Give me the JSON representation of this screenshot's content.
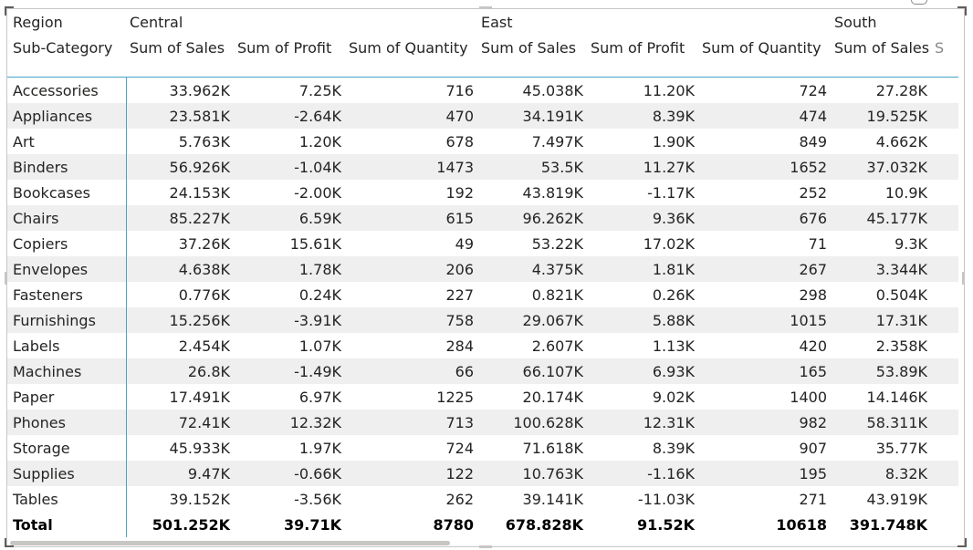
{
  "matrix": {
    "row_header": "Region",
    "col_header_label": "Sub-Category",
    "regions": [
      "Central",
      "East",
      "South"
    ],
    "measures": [
      "Sum of Sales",
      "Sum of Profit",
      "Sum of Quantity"
    ],
    "truncated_measure_glyph": "S",
    "rows": [
      {
        "sub": "Accessories",
        "c_sales": "33.962K",
        "c_profit": "7.25K",
        "c_qty": "716",
        "e_sales": "45.038K",
        "e_profit": "11.20K",
        "e_qty": "724",
        "s_sales": "27.28K"
      },
      {
        "sub": "Appliances",
        "c_sales": "23.581K",
        "c_profit": "-2.64K",
        "c_qty": "470",
        "e_sales": "34.191K",
        "e_profit": "8.39K",
        "e_qty": "474",
        "s_sales": "19.525K"
      },
      {
        "sub": "Art",
        "c_sales": "5.763K",
        "c_profit": "1.20K",
        "c_qty": "678",
        "e_sales": "7.497K",
        "e_profit": "1.90K",
        "e_qty": "849",
        "s_sales": "4.662K"
      },
      {
        "sub": "Binders",
        "c_sales": "56.926K",
        "c_profit": "-1.04K",
        "c_qty": "1473",
        "e_sales": "53.5K",
        "e_profit": "11.27K",
        "e_qty": "1652",
        "s_sales": "37.032K"
      },
      {
        "sub": "Bookcases",
        "c_sales": "24.153K",
        "c_profit": "-2.00K",
        "c_qty": "192",
        "e_sales": "43.819K",
        "e_profit": "-1.17K",
        "e_qty": "252",
        "s_sales": "10.9K"
      },
      {
        "sub": "Chairs",
        "c_sales": "85.227K",
        "c_profit": "6.59K",
        "c_qty": "615",
        "e_sales": "96.262K",
        "e_profit": "9.36K",
        "e_qty": "676",
        "s_sales": "45.177K"
      },
      {
        "sub": "Copiers",
        "c_sales": "37.26K",
        "c_profit": "15.61K",
        "c_qty": "49",
        "e_sales": "53.22K",
        "e_profit": "17.02K",
        "e_qty": "71",
        "s_sales": "9.3K"
      },
      {
        "sub": "Envelopes",
        "c_sales": "4.638K",
        "c_profit": "1.78K",
        "c_qty": "206",
        "e_sales": "4.375K",
        "e_profit": "1.81K",
        "e_qty": "267",
        "s_sales": "3.344K"
      },
      {
        "sub": "Fasteners",
        "c_sales": "0.776K",
        "c_profit": "0.24K",
        "c_qty": "227",
        "e_sales": "0.821K",
        "e_profit": "0.26K",
        "e_qty": "298",
        "s_sales": "0.504K"
      },
      {
        "sub": "Furnishings",
        "c_sales": "15.256K",
        "c_profit": "-3.91K",
        "c_qty": "758",
        "e_sales": "29.067K",
        "e_profit": "5.88K",
        "e_qty": "1015",
        "s_sales": "17.31K"
      },
      {
        "sub": "Labels",
        "c_sales": "2.454K",
        "c_profit": "1.07K",
        "c_qty": "284",
        "e_sales": "2.607K",
        "e_profit": "1.13K",
        "e_qty": "420",
        "s_sales": "2.358K"
      },
      {
        "sub": "Machines",
        "c_sales": "26.8K",
        "c_profit": "-1.49K",
        "c_qty": "66",
        "e_sales": "66.107K",
        "e_profit": "6.93K",
        "e_qty": "165",
        "s_sales": "53.89K"
      },
      {
        "sub": "Paper",
        "c_sales": "17.491K",
        "c_profit": "6.97K",
        "c_qty": "1225",
        "e_sales": "20.174K",
        "e_profit": "9.02K",
        "e_qty": "1400",
        "s_sales": "14.146K"
      },
      {
        "sub": "Phones",
        "c_sales": "72.41K",
        "c_profit": "12.32K",
        "c_qty": "713",
        "e_sales": "100.628K",
        "e_profit": "12.31K",
        "e_qty": "982",
        "s_sales": "58.311K"
      },
      {
        "sub": "Storage",
        "c_sales": "45.933K",
        "c_profit": "1.97K",
        "c_qty": "724",
        "e_sales": "71.618K",
        "e_profit": "8.39K",
        "e_qty": "907",
        "s_sales": "35.77K"
      },
      {
        "sub": "Supplies",
        "c_sales": "9.47K",
        "c_profit": "-0.66K",
        "c_qty": "122",
        "e_sales": "10.763K",
        "e_profit": "-1.16K",
        "e_qty": "195",
        "s_sales": "8.32K"
      },
      {
        "sub": "Tables",
        "c_sales": "39.152K",
        "c_profit": "-3.56K",
        "c_qty": "262",
        "e_sales": "39.141K",
        "e_profit": "-11.03K",
        "e_qty": "271",
        "s_sales": "43.919K"
      }
    ],
    "total": {
      "sub": "Total",
      "c_sales": "501.252K",
      "c_profit": "39.71K",
      "c_qty": "8780",
      "e_sales": "678.828K",
      "e_profit": "91.52K",
      "e_qty": "10618",
      "s_sales": "391.748K"
    }
  }
}
